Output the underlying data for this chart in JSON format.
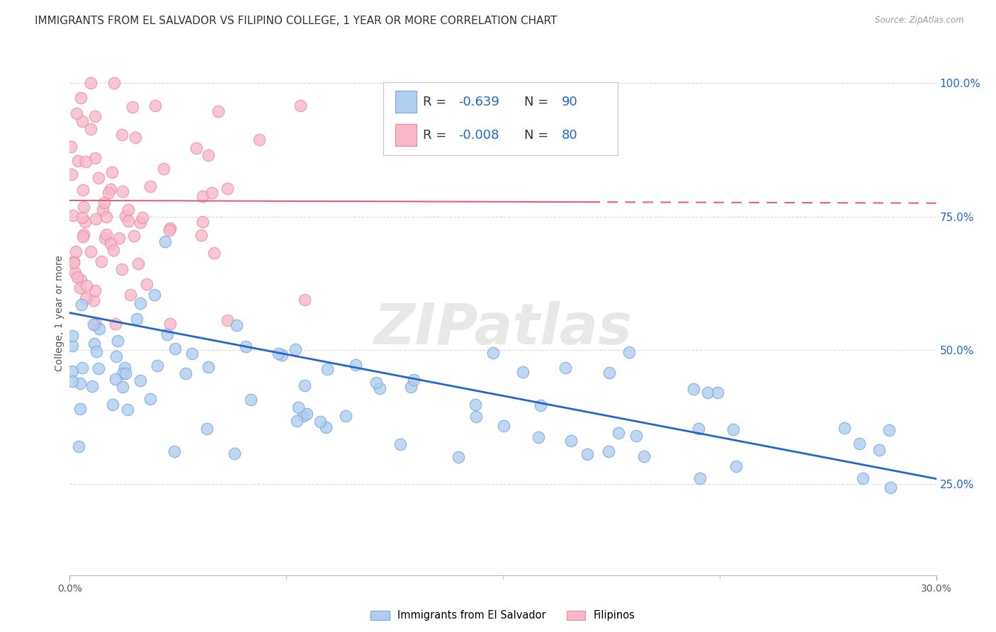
{
  "title": "IMMIGRANTS FROM EL SALVADOR VS FILIPINO COLLEGE, 1 YEAR OR MORE CORRELATION CHART",
  "source": "Source: ZipAtlas.com",
  "ylabel": "College, 1 year or more",
  "yticks": [
    25.0,
    50.0,
    75.0,
    100.0
  ],
  "ytick_labels": [
    "25.0%",
    "50.0%",
    "75.0%",
    "100.0%"
  ],
  "xmin": 0.0,
  "xmax": 30.0,
  "ymin": 8.0,
  "ymax": 106.0,
  "legend_bottom_blue": "Immigrants from El Salvador",
  "legend_bottom_pink": "Filipinos",
  "blue_fill_color": "#b0cef0",
  "pink_fill_color": "#f8b8c8",
  "blue_edge_color": "#7aaae0",
  "pink_edge_color": "#e890a8",
  "blue_line_color": "#2266cc",
  "pink_line_color": "#e06080",
  "blue_r": -0.639,
  "blue_n": 90,
  "pink_r": -0.008,
  "pink_n": 80,
  "blue_line_y0": 57.0,
  "blue_line_y1": 26.0,
  "pink_line_y0": 78.0,
  "pink_line_y1": 77.5,
  "pink_solid_end_x": 18.0,
  "watermark": "ZIPatlas",
  "grid_color": "#d8d8d8",
  "background_color": "#ffffff",
  "title_fontsize": 11,
  "axis_label_fontsize": 10,
  "tick_fontsize": 10,
  "legend_fontsize": 13
}
